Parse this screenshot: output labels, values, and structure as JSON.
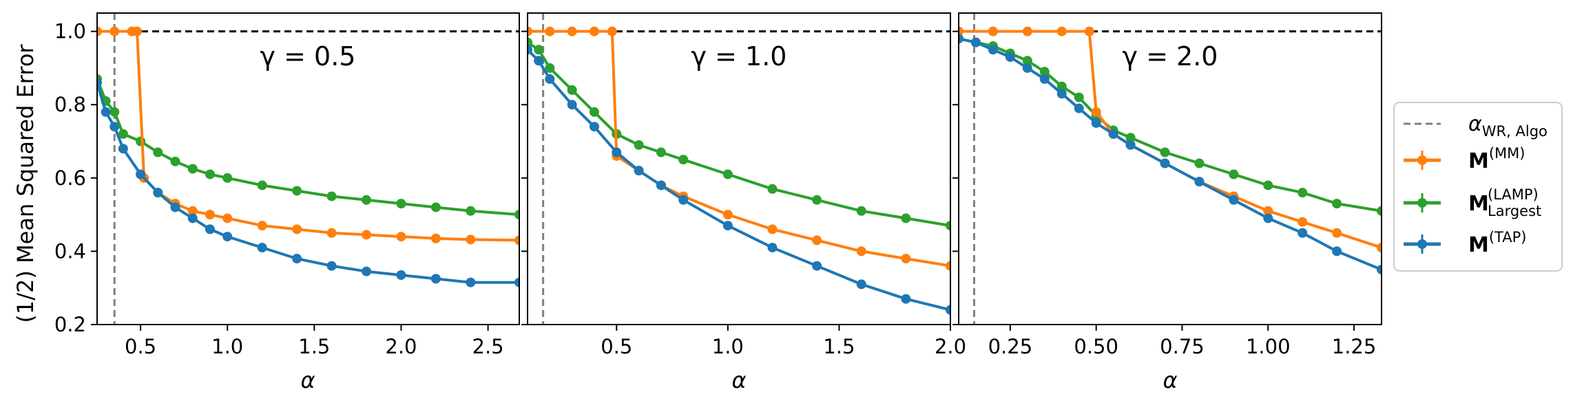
{
  "figure": {
    "ylabel": "(1/2) Mean Squared Error",
    "colors": {
      "mm": "#ff7f0e",
      "lamp": "#2ca02c",
      "tap": "#1f77b4",
      "wr_algo": "#808080",
      "reference": "#000000"
    },
    "legend": {
      "placement": "outside-right",
      "items": [
        {
          "key": "wr",
          "label": "α",
          "sub": "WR, Algo",
          "sup": ""
        },
        {
          "key": "mm",
          "label": "M",
          "sub": "",
          "sup": "(MM)"
        },
        {
          "key": "lamp",
          "label": "M",
          "sub": "Largest",
          "sup": "(LAMP)"
        },
        {
          "key": "tap",
          "label": "M",
          "sub": "",
          "sup": "(TAP)"
        }
      ]
    }
  },
  "chart_data": [
    {
      "type": "line",
      "title": "γ = 0.5",
      "gamma_text": "γ = 0.5",
      "xlabel": "α",
      "ylabel": "(1/2) Mean Squared Error",
      "xlim": [
        0.25,
        2.68
      ],
      "ylim": [
        0.2,
        1.05
      ],
      "xticks": [
        0.5,
        1.0,
        1.5,
        2.0,
        2.5
      ],
      "xtick_labels": [
        "0.5",
        "1.0",
        "1.5",
        "2.0",
        "2.5"
      ],
      "yticks": [
        0.2,
        0.4,
        0.6,
        0.8,
        1.0
      ],
      "ytick_labels": [
        "0.2",
        "0.4",
        "0.6",
        "0.8",
        "1.0"
      ],
      "alpha_wr_algo": 0.35,
      "reference_line": 1.0,
      "grid": false,
      "series": [
        {
          "key": "mm",
          "x": [
            0.25,
            0.35,
            0.45,
            0.48,
            0.52,
            0.6,
            0.7,
            0.8,
            0.9,
            1.0,
            1.2,
            1.4,
            1.6,
            1.8,
            2.0,
            2.2,
            2.4,
            2.68
          ],
          "y": [
            1.0,
            1.0,
            1.0,
            1.0,
            0.6,
            0.56,
            0.53,
            0.51,
            0.5,
            0.49,
            0.47,
            0.46,
            0.45,
            0.445,
            0.44,
            0.435,
            0.432,
            0.43
          ]
        },
        {
          "key": "lamp",
          "x": [
            0.25,
            0.3,
            0.35,
            0.4,
            0.5,
            0.6,
            0.7,
            0.8,
            0.9,
            1.0,
            1.2,
            1.4,
            1.6,
            1.8,
            2.0,
            2.2,
            2.4,
            2.68
          ],
          "y": [
            0.87,
            0.81,
            0.78,
            0.72,
            0.7,
            0.67,
            0.645,
            0.625,
            0.61,
            0.6,
            0.58,
            0.565,
            0.55,
            0.54,
            0.53,
            0.52,
            0.51,
            0.5
          ]
        },
        {
          "key": "tap",
          "x": [
            0.25,
            0.3,
            0.35,
            0.4,
            0.5,
            0.6,
            0.7,
            0.8,
            0.9,
            1.0,
            1.2,
            1.4,
            1.6,
            1.8,
            2.0,
            2.2,
            2.4,
            2.68
          ],
          "y": [
            0.86,
            0.78,
            0.74,
            0.68,
            0.61,
            0.56,
            0.52,
            0.49,
            0.46,
            0.44,
            0.41,
            0.38,
            0.36,
            0.345,
            0.335,
            0.325,
            0.315,
            0.315
          ]
        }
      ]
    },
    {
      "type": "line",
      "title": "γ = 1.0",
      "gamma_text": "γ = 1.0",
      "xlabel": "α",
      "xlim": [
        0.1,
        2.0
      ],
      "ylim": [
        0.2,
        1.05
      ],
      "xticks": [
        0.5,
        1.0,
        1.5,
        2.0
      ],
      "xtick_labels": [
        "0.5",
        "1.0",
        "1.5",
        "2.0"
      ],
      "yticks": [
        0.2,
        0.4,
        0.6,
        0.8,
        1.0
      ],
      "alpha_wr_algo": 0.17,
      "reference_line": 1.0,
      "grid": false,
      "series": [
        {
          "key": "mm",
          "x": [
            0.1,
            0.2,
            0.3,
            0.4,
            0.48,
            0.5,
            0.6,
            0.7,
            0.8,
            1.0,
            1.2,
            1.4,
            1.6,
            1.8,
            2.0
          ],
          "y": [
            1.0,
            1.0,
            1.0,
            1.0,
            1.0,
            0.66,
            0.62,
            0.58,
            0.55,
            0.5,
            0.46,
            0.43,
            0.4,
            0.38,
            0.36
          ]
        },
        {
          "key": "lamp",
          "x": [
            0.1,
            0.15,
            0.2,
            0.3,
            0.4,
            0.5,
            0.6,
            0.7,
            0.8,
            1.0,
            1.2,
            1.4,
            1.6,
            1.8,
            2.0
          ],
          "y": [
            0.97,
            0.95,
            0.9,
            0.84,
            0.78,
            0.72,
            0.69,
            0.67,
            0.65,
            0.61,
            0.57,
            0.54,
            0.51,
            0.49,
            0.47
          ]
        },
        {
          "key": "tap",
          "x": [
            0.1,
            0.15,
            0.2,
            0.3,
            0.4,
            0.5,
            0.6,
            0.7,
            0.8,
            1.0,
            1.2,
            1.4,
            1.6,
            1.8,
            2.0
          ],
          "y": [
            0.95,
            0.92,
            0.87,
            0.8,
            0.74,
            0.67,
            0.62,
            0.58,
            0.54,
            0.47,
            0.41,
            0.36,
            0.31,
            0.27,
            0.24
          ]
        }
      ]
    },
    {
      "type": "line",
      "title": "γ = 2.0",
      "gamma_text": "γ = 2.0",
      "xlabel": "α",
      "xlim": [
        0.1,
        1.33
      ],
      "ylim": [
        0.2,
        1.05
      ],
      "xticks": [
        0.25,
        0.5,
        0.75,
        1.0,
        1.25
      ],
      "xtick_labels": [
        "0.25",
        "0.50",
        "0.75",
        "1.00",
        "1.25"
      ],
      "yticks": [
        0.2,
        0.4,
        0.6,
        0.8,
        1.0
      ],
      "alpha_wr_algo": 0.145,
      "reference_line": 1.0,
      "grid": false,
      "series": [
        {
          "key": "mm",
          "x": [
            0.1,
            0.2,
            0.3,
            0.4,
            0.48,
            0.5,
            0.55,
            0.6,
            0.7,
            0.8,
            0.9,
            1.0,
            1.1,
            1.2,
            1.33
          ],
          "y": [
            1.0,
            1.0,
            1.0,
            1.0,
            1.0,
            0.78,
            0.72,
            0.69,
            0.64,
            0.59,
            0.55,
            0.51,
            0.48,
            0.45,
            0.41
          ]
        },
        {
          "key": "lamp",
          "x": [
            0.1,
            0.15,
            0.2,
            0.25,
            0.3,
            0.35,
            0.4,
            0.45,
            0.5,
            0.55,
            0.6,
            0.7,
            0.8,
            0.9,
            1.0,
            1.1,
            1.2,
            1.33
          ],
          "y": [
            0.98,
            0.97,
            0.96,
            0.94,
            0.92,
            0.89,
            0.85,
            0.82,
            0.77,
            0.73,
            0.71,
            0.67,
            0.64,
            0.61,
            0.58,
            0.56,
            0.53,
            0.51
          ]
        },
        {
          "key": "tap",
          "x": [
            0.1,
            0.15,
            0.2,
            0.25,
            0.3,
            0.35,
            0.4,
            0.45,
            0.5,
            0.55,
            0.6,
            0.7,
            0.8,
            0.9,
            1.0,
            1.1,
            1.2,
            1.33
          ],
          "y": [
            0.98,
            0.97,
            0.95,
            0.93,
            0.9,
            0.87,
            0.83,
            0.79,
            0.75,
            0.72,
            0.69,
            0.64,
            0.59,
            0.54,
            0.49,
            0.45,
            0.4,
            0.35
          ]
        }
      ]
    }
  ]
}
